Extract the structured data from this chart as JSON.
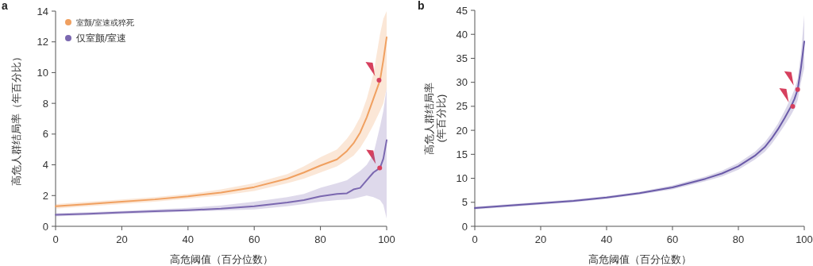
{
  "chart_data": [
    {
      "type": "line",
      "annotations": [
        "a"
      ],
      "xlabel": "高危阈值（百分位数）",
      "ylabel": "高危人群结局率（年百分比）",
      "xlim": [
        0,
        100
      ],
      "ylim": [
        0,
        14
      ],
      "xticks": [
        0,
        20,
        40,
        60,
        80,
        100
      ],
      "yticks": [
        0,
        2,
        4,
        6,
        8,
        10,
        12,
        14
      ],
      "legend": "top left",
      "line_style": "solid",
      "grid": false,
      "x": [
        0,
        10,
        20,
        30,
        40,
        50,
        60,
        70,
        75,
        80,
        85,
        88,
        90,
        92,
        94,
        96,
        98,
        99,
        100
      ],
      "series": [
        {
          "name": "室颤/室速或猝死",
          "color": "#f0a060",
          "values": [
            1.3,
            1.45,
            1.6,
            1.75,
            1.95,
            2.2,
            2.55,
            3.1,
            3.5,
            3.95,
            4.35,
            4.9,
            5.4,
            6.1,
            7.1,
            8.3,
            9.5,
            10.8,
            12.3
          ],
          "lower": [
            1.15,
            1.3,
            1.45,
            1.6,
            1.8,
            2.0,
            2.3,
            2.8,
            3.1,
            3.5,
            3.9,
            4.3,
            4.6,
            5.1,
            5.8,
            6.6,
            7.5,
            8.0,
            9.0
          ],
          "upper": [
            1.45,
            1.6,
            1.75,
            1.9,
            2.1,
            2.4,
            2.8,
            3.4,
            3.9,
            4.5,
            5.0,
            5.7,
            6.3,
            7.1,
            8.3,
            9.9,
            12.5,
            13.5,
            14.0
          ]
        },
        {
          "name": "仅室颤/室速",
          "color": "#7b68b0",
          "values": [
            0.75,
            0.82,
            0.9,
            0.98,
            1.05,
            1.15,
            1.3,
            1.55,
            1.7,
            1.95,
            2.1,
            2.15,
            2.4,
            2.5,
            3.0,
            3.5,
            3.8,
            4.4,
            5.6
          ],
          "lower": [
            0.65,
            0.72,
            0.8,
            0.88,
            0.95,
            1.02,
            1.1,
            1.3,
            1.45,
            1.6,
            1.7,
            1.75,
            1.8,
            1.9,
            2.0,
            1.9,
            1.7,
            1.4,
            0.5
          ],
          "upper": [
            0.85,
            0.92,
            1.0,
            1.1,
            1.2,
            1.35,
            1.6,
            1.9,
            2.1,
            2.5,
            2.8,
            3.0,
            3.3,
            3.6,
            4.0,
            4.7,
            6.5,
            7.5,
            9.0
          ]
        },
        {
          "type": "scatter",
          "color": "#d6405e",
          "marker": "circle",
          "x": [
            97.7,
            97.9
          ],
          "values": [
            9.5,
            3.8
          ]
        }
      ]
    },
    {
      "type": "line",
      "annotations": [
        "b"
      ],
      "xlabel": "高危阈值（百分位数）",
      "ylabel": "高危人群结局率\n(年百分比)",
      "xlim": [
        0,
        100
      ],
      "ylim": [
        0,
        45
      ],
      "xticks": [
        0,
        20,
        40,
        60,
        80,
        100
      ],
      "yticks": [
        0,
        5,
        10,
        15,
        20,
        25,
        30,
        35,
        40,
        45
      ],
      "legend": false,
      "line_style": "solid",
      "grid": false,
      "x": [
        0,
        10,
        20,
        30,
        40,
        50,
        60,
        70,
        75,
        80,
        85,
        88,
        90,
        92,
        94,
        96,
        97,
        98,
        99,
        100
      ],
      "series": [
        {
          "color": "#6a5aa8",
          "values": [
            3.8,
            4.3,
            4.8,
            5.3,
            6.0,
            6.9,
            8.1,
            9.9,
            11.0,
            12.5,
            14.7,
            16.5,
            18.2,
            20.2,
            22.5,
            25.0,
            26.5,
            28.5,
            33.0,
            38.5
          ],
          "lower": [
            3.5,
            4.0,
            4.5,
            5.0,
            5.7,
            6.6,
            7.7,
            9.4,
            10.4,
            11.8,
            13.9,
            15.5,
            17.1,
            19.0,
            21.0,
            23.2,
            24.5,
            26.3,
            30.0,
            33.0
          ],
          "upper": [
            4.1,
            4.6,
            5.1,
            5.6,
            6.3,
            7.2,
            8.5,
            10.4,
            11.6,
            13.2,
            15.5,
            17.5,
            19.3,
            21.4,
            24.0,
            26.8,
            28.5,
            30.7,
            36.0,
            44.0
          ]
        },
        {
          "type": "scatter",
          "color": "#d6405e",
          "marker": "circle",
          "x": [
            98,
            96.5
          ],
          "values": [
            28.5,
            25.0
          ]
        }
      ]
    }
  ]
}
